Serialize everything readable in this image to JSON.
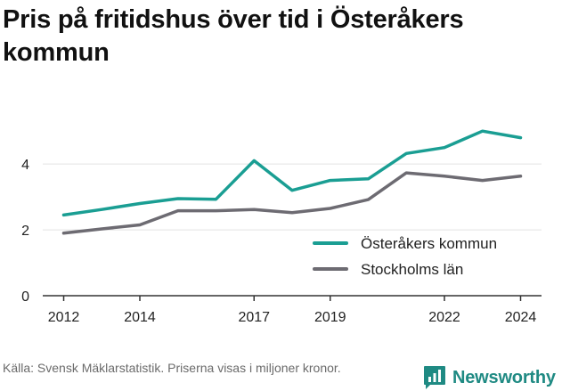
{
  "chart_data": {
    "type": "line",
    "title": "Pris på fritidshus över tid i Österåkers kommun",
    "x": [
      2012,
      2013,
      2014,
      2015,
      2016,
      2017,
      2018,
      2019,
      2020,
      2021,
      2022,
      2023,
      2024
    ],
    "x_ticks": [
      "2012",
      "2014",
      "2017",
      "2019",
      "2022",
      "2024"
    ],
    "y_ticks": [
      "0",
      "2",
      "4"
    ],
    "ylim": [
      0,
      5.6
    ],
    "grid": true,
    "legend_position": "bottom-right",
    "series": [
      {
        "name": "Österåkers kommun",
        "color": "#1a9e93",
        "values": [
          2.45,
          2.62,
          2.8,
          2.95,
          2.93,
          4.1,
          3.2,
          3.5,
          3.55,
          4.32,
          4.5,
          5.0,
          4.8
        ]
      },
      {
        "name": "Stockholms län",
        "color": "#6d6b72",
        "values": [
          1.9,
          2.03,
          2.15,
          2.58,
          2.58,
          2.62,
          2.52,
          2.65,
          2.92,
          3.73,
          3.63,
          3.5,
          3.63
        ]
      }
    ]
  },
  "source": "Källa: Svensk Mäklarstatistik. Priserna visas i miljoner kronor.",
  "brand": {
    "name": "Newsworthy",
    "color": "#1f8a83",
    "icon": "chart-bubble-icon"
  }
}
